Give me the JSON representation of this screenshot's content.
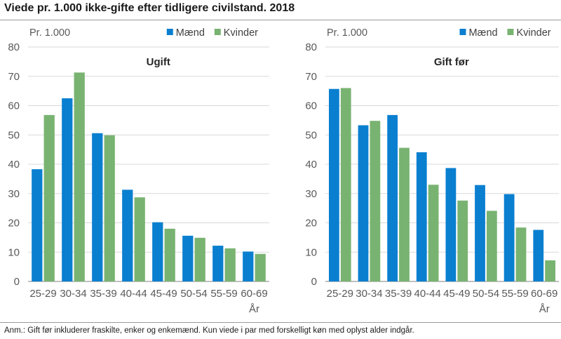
{
  "title": "Viede pr. 1.000 ikke-gifte efter tidligere civilstand. 2018",
  "footnote": "Anm.: Gift før inkluderer fraskilte, enker og enkemænd. Kun viede i par med forskelligt køn med oplyst alder indgår.",
  "colors": {
    "men": "#0a7fd0",
    "women": "#79b371",
    "grid": "#d9d9d9",
    "axis": "#808080"
  },
  "chart_data": [
    {
      "type": "bar",
      "title": "Ugift",
      "unit_label": "Pr. 1.000",
      "xlabel": "År",
      "ylim": [
        0,
        80
      ],
      "yticks": [
        0,
        10,
        20,
        30,
        40,
        50,
        60,
        70,
        80
      ],
      "categories": [
        "25-29",
        "30-34",
        "35-39",
        "40-44",
        "45-49",
        "50-54",
        "55-59",
        "60-69"
      ],
      "series": [
        {
          "name": "Mænd",
          "values": [
            38.3,
            62.5,
            50.6,
            31.3,
            20.2,
            15.6,
            12.2,
            10.2
          ]
        },
        {
          "name": "Kvinder",
          "values": [
            56.8,
            71.3,
            49.9,
            28.7,
            18.0,
            14.9,
            11.3,
            9.4
          ]
        }
      ]
    },
    {
      "type": "bar",
      "title": "Gift før",
      "unit_label": "Pr. 1.000",
      "xlabel": "År",
      "ylim": [
        0,
        80
      ],
      "yticks": [
        0,
        10,
        20,
        30,
        40,
        50,
        60,
        70,
        80
      ],
      "categories": [
        "25-29",
        "30-34",
        "35-39",
        "40-44",
        "45-49",
        "50-54",
        "55-59",
        "60-69"
      ],
      "series": [
        {
          "name": "Mænd",
          "values": [
            65.7,
            53.3,
            56.8,
            44.1,
            38.7,
            32.9,
            29.8,
            17.6
          ]
        },
        {
          "name": "Kvinder",
          "values": [
            66.0,
            54.8,
            45.6,
            33.0,
            27.6,
            24.1,
            18.4,
            7.2
          ]
        }
      ]
    }
  ]
}
